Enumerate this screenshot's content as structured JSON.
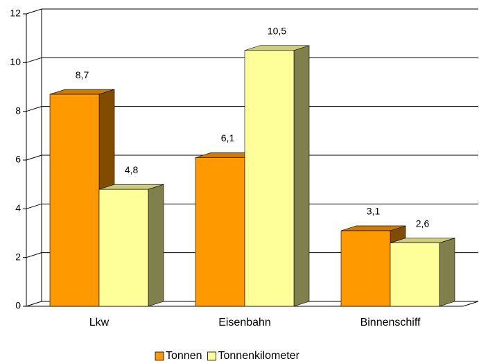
{
  "chart_data": {
    "type": "bar",
    "categories": [
      "Lkw",
      "Eisenbahn",
      "Binnenschiff"
    ],
    "series": [
      {
        "name": "Tonnen",
        "color": "#ff9900",
        "values": [
          8.7,
          6.1,
          3.1
        ],
        "value_labels": [
          "8,7",
          "6,1",
          "3,1"
        ]
      },
      {
        "name": "Tonnenkilometer",
        "color": "#ffff99",
        "values": [
          4.8,
          10.5,
          2.6
        ],
        "value_labels": [
          "4,8",
          "10,5",
          "2,6"
        ]
      }
    ],
    "ylim": [
      0,
      12
    ],
    "yticks": [
      0,
      2,
      4,
      6,
      8,
      10,
      12
    ],
    "grid": true,
    "legend": "bottom"
  }
}
